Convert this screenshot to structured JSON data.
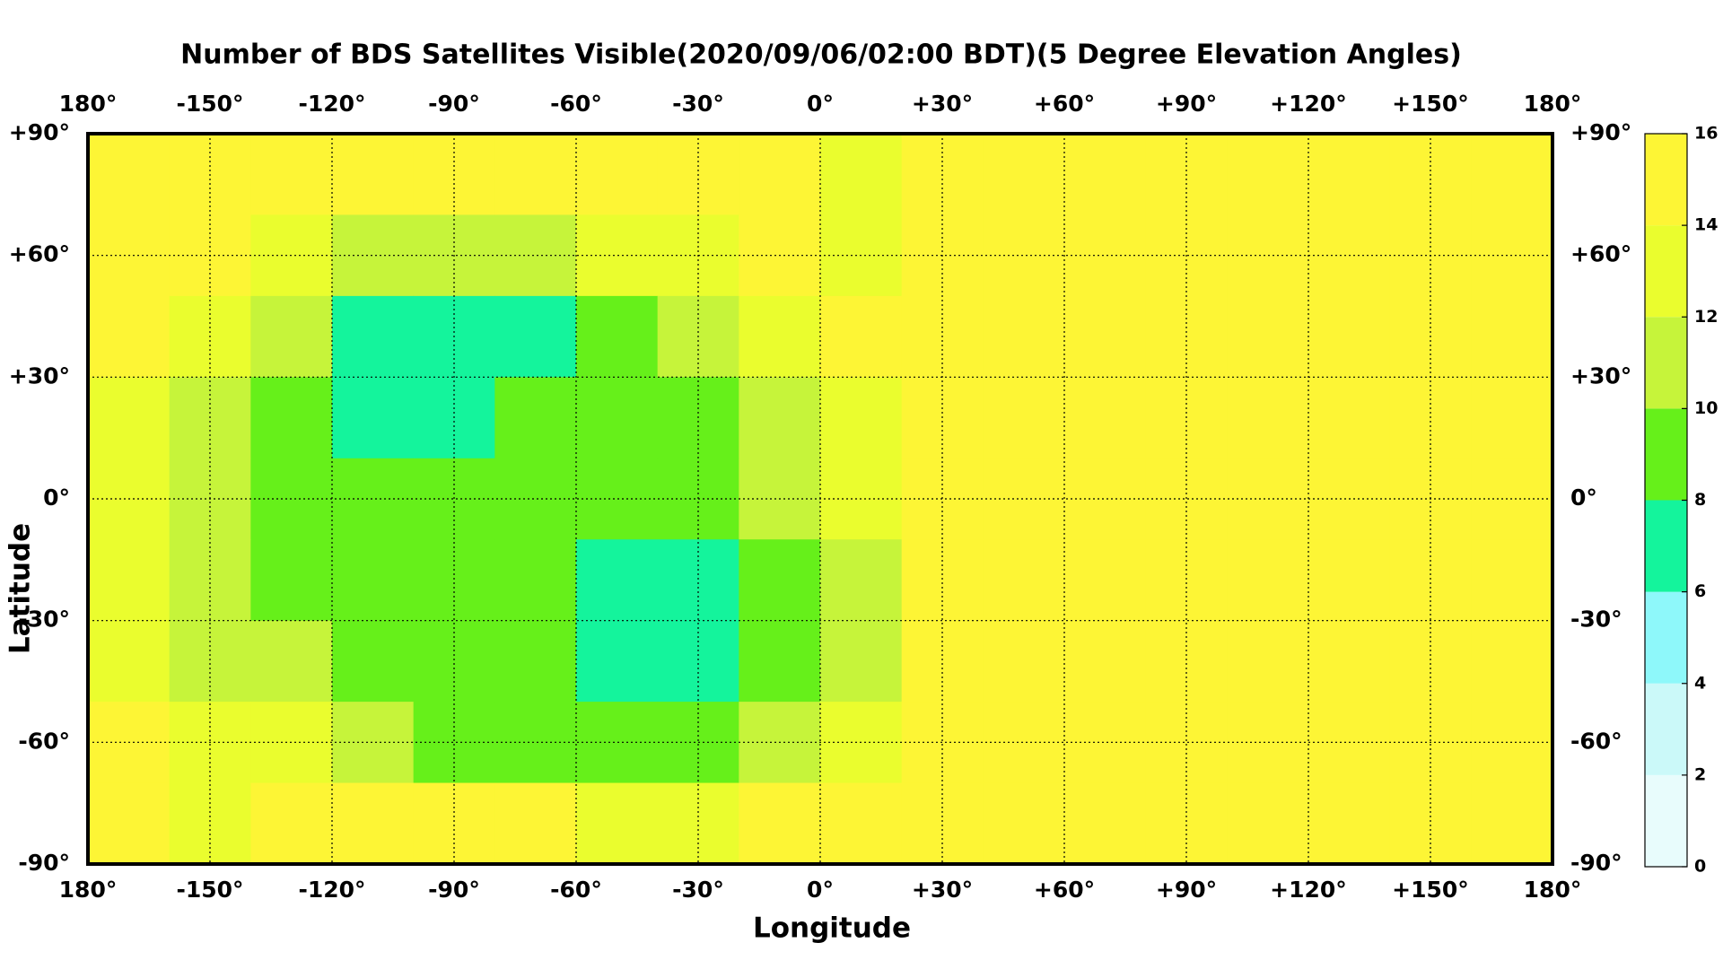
{
  "chart_data": {
    "type": "heatmap",
    "title": "Number of BDS Satellites Visible(2020/09/06/02:00 BDT)(5 Degree Elevation Angles)",
    "x_label": "Longitude",
    "y_label": "Latitude",
    "xlim": [
      -180,
      180
    ],
    "ylim": [
      -90,
      90
    ],
    "xticks": [
      {
        "value": -180,
        "label": "180°"
      },
      {
        "value": -150,
        "label": "-150°"
      },
      {
        "value": -120,
        "label": "-120°"
      },
      {
        "value": -90,
        "label": "-90°"
      },
      {
        "value": -60,
        "label": "-60°"
      },
      {
        "value": -30,
        "label": "-30°"
      },
      {
        "value": 0,
        "label": "0°"
      },
      {
        "value": 30,
        "label": "+30°"
      },
      {
        "value": 60,
        "label": "+60°"
      },
      {
        "value": 90,
        "label": "+90°"
      },
      {
        "value": 120,
        "label": "+120°"
      },
      {
        "value": 150,
        "label": "+150°"
      },
      {
        "value": 180,
        "label": "180°"
      }
    ],
    "yticks": [
      {
        "value": 90,
        "label": "+90°"
      },
      {
        "value": 60,
        "label": "+60°"
      },
      {
        "value": 30,
        "label": "+30°"
      },
      {
        "value": 0,
        "label": "0°"
      },
      {
        "value": -30,
        "label": "-30°"
      },
      {
        "value": -60,
        "label": "-60°"
      },
      {
        "value": -90,
        "label": "-90°"
      }
    ],
    "grid": true,
    "lon_edges": [
      -180,
      -160,
      -140,
      -120,
      -100,
      -80,
      -60,
      -40,
      -20,
      0,
      20,
      40,
      60,
      80,
      100,
      120,
      140,
      160,
      180
    ],
    "lat_edges": [
      90,
      70,
      50,
      30,
      10,
      -10,
      -30,
      -50,
      -70,
      -90
    ],
    "values": [
      [
        15,
        15,
        15,
        15,
        15,
        15,
        15,
        15,
        15,
        13,
        15,
        15,
        15,
        15,
        15,
        15,
        15,
        15
      ],
      [
        15,
        15,
        13,
        11,
        11,
        11,
        13,
        13,
        15,
        13,
        15,
        15,
        15,
        15,
        15,
        15,
        15,
        15
      ],
      [
        15,
        13,
        11,
        7,
        7,
        7,
        9,
        11,
        13,
        15,
        15,
        15,
        15,
        15,
        15,
        15,
        15,
        15
      ],
      [
        13,
        11,
        9,
        7,
        7,
        9,
        9,
        9,
        11,
        13,
        15,
        15,
        15,
        15,
        15,
        15,
        15,
        15
      ],
      [
        13,
        11,
        9,
        9,
        9,
        9,
        9,
        9,
        11,
        13,
        15,
        15,
        15,
        15,
        15,
        15,
        15,
        15
      ],
      [
        13,
        11,
        9,
        9,
        9,
        9,
        7,
        7,
        9,
        11,
        15,
        15,
        15,
        15,
        15,
        15,
        15,
        15
      ],
      [
        13,
        11,
        11,
        9,
        9,
        9,
        7,
        7,
        9,
        11,
        15,
        15,
        15,
        15,
        15,
        15,
        15,
        15
      ],
      [
        15,
        13,
        13,
        11,
        9,
        9,
        9,
        9,
        11,
        13,
        15,
        15,
        15,
        15,
        15,
        15,
        15,
        15
      ],
      [
        15,
        13,
        15,
        15,
        15,
        15,
        13,
        13,
        15,
        15,
        15,
        15,
        15,
        15,
        15,
        15,
        15,
        15
      ]
    ],
    "colorbar_ticks": [
      0,
      2,
      4,
      6,
      8,
      10,
      12,
      14,
      16
    ],
    "colors": [
      "#e8fcfc",
      "#cbf9f9",
      "#8ef8fa",
      "#14f49c",
      "#66f01a",
      "#c6f43a",
      "#eafd2e",
      "#fdf535"
    ]
  }
}
